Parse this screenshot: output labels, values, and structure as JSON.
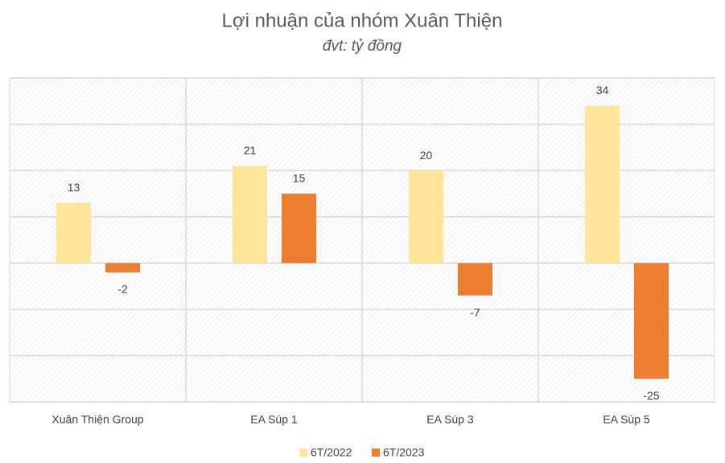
{
  "chart_data": {
    "type": "bar",
    "title": "Lợi nhuận của nhóm Xuân Thiện",
    "subtitle": "đvt: tỷ đồng",
    "categories": [
      "Xuân Thiện Group",
      "EA Súp 1",
      "EA Súp 3",
      "EA Súp 5"
    ],
    "series": [
      {
        "name": "6T/2022",
        "color": "#FEE599",
        "values": [
          13,
          21,
          20,
          34
        ]
      },
      {
        "name": "6T/2023",
        "color": "#ED7D31",
        "values": [
          -2,
          15,
          -7,
          -25
        ]
      }
    ],
    "ylim": [
      -30,
      40
    ],
    "yticks": [
      -30,
      -20,
      -10,
      0,
      10,
      20,
      30,
      40
    ],
    "grid": true
  }
}
